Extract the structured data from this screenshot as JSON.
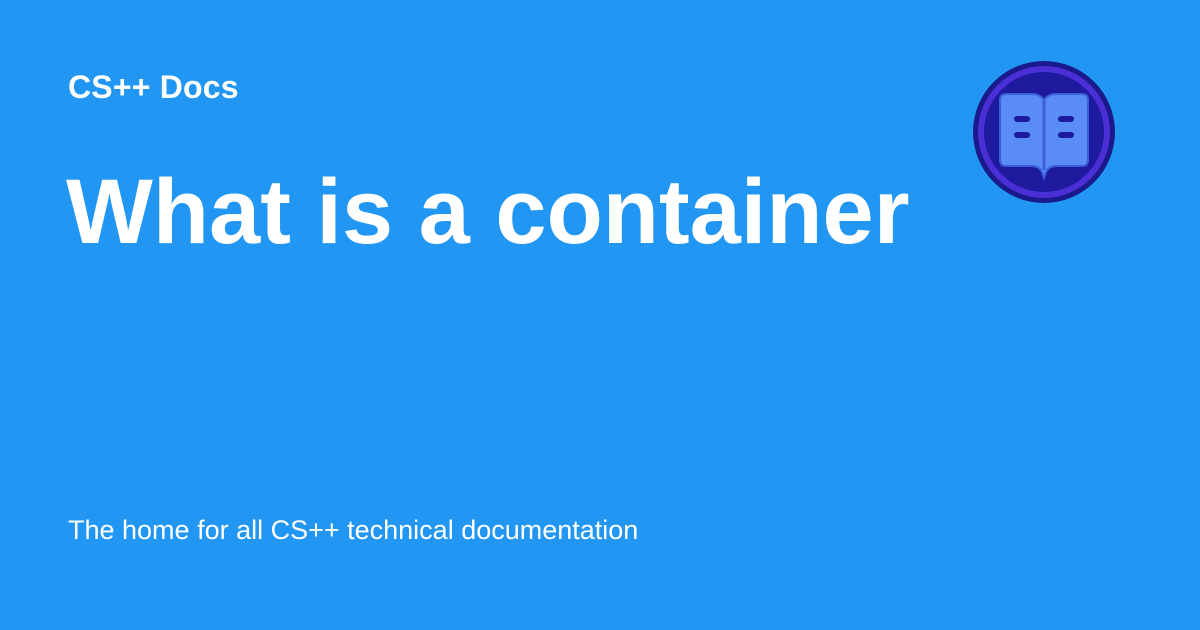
{
  "card": {
    "site_name": "CS++ Docs",
    "title": "What is a container",
    "tagline": "The home for all CS++ technical documentation",
    "logo_icon": "open-book-icon",
    "colors": {
      "background": "#2196f3",
      "text": "#ffffff",
      "logo_ring_outer": "#1a1a8c",
      "logo_ring": "#4b2fd6",
      "logo_fill": "#1e1a9e",
      "book": "#5a8cf5"
    }
  }
}
